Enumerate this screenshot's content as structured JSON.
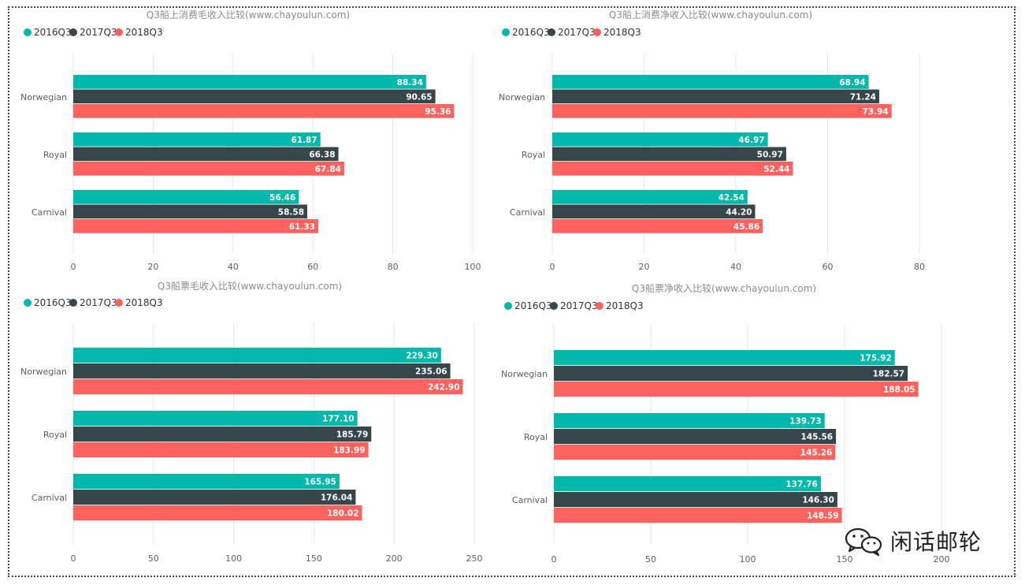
{
  "colors": {
    "2016Q3": "#01b8aa",
    "2017Q3": "#374649",
    "2018Q3": "#fd625e",
    "text": "#605e5c",
    "grid": "#e6e6e6"
  },
  "watermark": {
    "icon": "wechat-icon",
    "text": "闲话邮轮"
  },
  "chart_data": [
    {
      "type": "bar",
      "orientation": "horizontal",
      "title": "Q3船上消费毛收入比较(www.chayoulun.com)",
      "categories": [
        "Norwegian",
        "Royal",
        "Carnival"
      ],
      "series": [
        {
          "name": "2016Q3",
          "values": [
            88.34,
            61.87,
            56.46
          ],
          "labels": [
            "88.34",
            "61.87",
            "56.46"
          ]
        },
        {
          "name": "2017Q3",
          "values": [
            90.65,
            66.38,
            58.58
          ],
          "labels": [
            "90.65",
            "66.38",
            "58.58"
          ]
        },
        {
          "name": "2018Q3",
          "values": [
            95.36,
            67.84,
            61.33
          ],
          "labels": [
            "95.36",
            "67.84",
            "61.33"
          ]
        }
      ],
      "xlim": [
        0,
        100
      ],
      "xticks": [
        0,
        20,
        40,
        60,
        80,
        100
      ],
      "grid": true,
      "legend": "top-left"
    },
    {
      "type": "bar",
      "orientation": "horizontal",
      "title": "Q3船上消费净收入比较(www.chayoulun.com)",
      "categories": [
        "Norwegian",
        "Royal",
        "Carnival"
      ],
      "series": [
        {
          "name": "2016Q3",
          "values": [
            68.94,
            46.97,
            42.54
          ],
          "labels": [
            "68.94",
            "46.97",
            "42.54"
          ]
        },
        {
          "name": "2017Q3",
          "values": [
            71.24,
            50.97,
            44.2
          ],
          "labels": [
            "71.24",
            "50.97",
            "44.20"
          ]
        },
        {
          "name": "2018Q3",
          "values": [
            73.94,
            52.44,
            45.86
          ],
          "labels": [
            "73.94",
            "52.44",
            "45.86"
          ]
        }
      ],
      "xlim": [
        0,
        80
      ],
      "xticks": [
        0,
        20,
        40,
        60,
        80
      ],
      "grid": true,
      "legend": "top-left"
    },
    {
      "type": "bar",
      "orientation": "horizontal",
      "title": "Q3船票毛收入比较(www.chayoulun.com)",
      "categories": [
        "Norwegian",
        "Royal",
        "Carnival"
      ],
      "series": [
        {
          "name": "2016Q3",
          "values": [
            229.3,
            177.1,
            165.95
          ],
          "labels": [
            "229.30",
            "177.10",
            "165.95"
          ]
        },
        {
          "name": "2017Q3",
          "values": [
            235.06,
            185.79,
            176.04
          ],
          "labels": [
            "235.06",
            "185.79",
            "176.04"
          ]
        },
        {
          "name": "2018Q3",
          "values": [
            242.9,
            183.99,
            180.02
          ],
          "labels": [
            "242.90",
            "183.99",
            "180.02"
          ]
        }
      ],
      "xlim": [
        0,
        250
      ],
      "xticks": [
        0,
        50,
        100,
        150,
        200,
        250
      ],
      "grid": true,
      "legend": "top-left"
    },
    {
      "type": "bar",
      "orientation": "horizontal",
      "title": "Q3船票净收入比较(www.chayoulun.com)",
      "categories": [
        "Norwegian",
        "Royal",
        "Carnival"
      ],
      "series": [
        {
          "name": "2016Q3",
          "values": [
            175.92,
            139.73,
            137.76
          ],
          "labels": [
            "175.92",
            "139.73",
            "137.76"
          ]
        },
        {
          "name": "2017Q3",
          "values": [
            182.57,
            145.56,
            146.3
          ],
          "labels": [
            "182.57",
            "145.56",
            "146.30"
          ]
        },
        {
          "name": "2018Q3",
          "values": [
            188.05,
            145.26,
            148.59
          ],
          "labels": [
            "188.05",
            "145.26",
            "148.59"
          ]
        }
      ],
      "xlim": [
        0,
        200
      ],
      "xticks": [
        0,
        50,
        100,
        150,
        200
      ],
      "grid": true,
      "legend": "top-left"
    }
  ]
}
